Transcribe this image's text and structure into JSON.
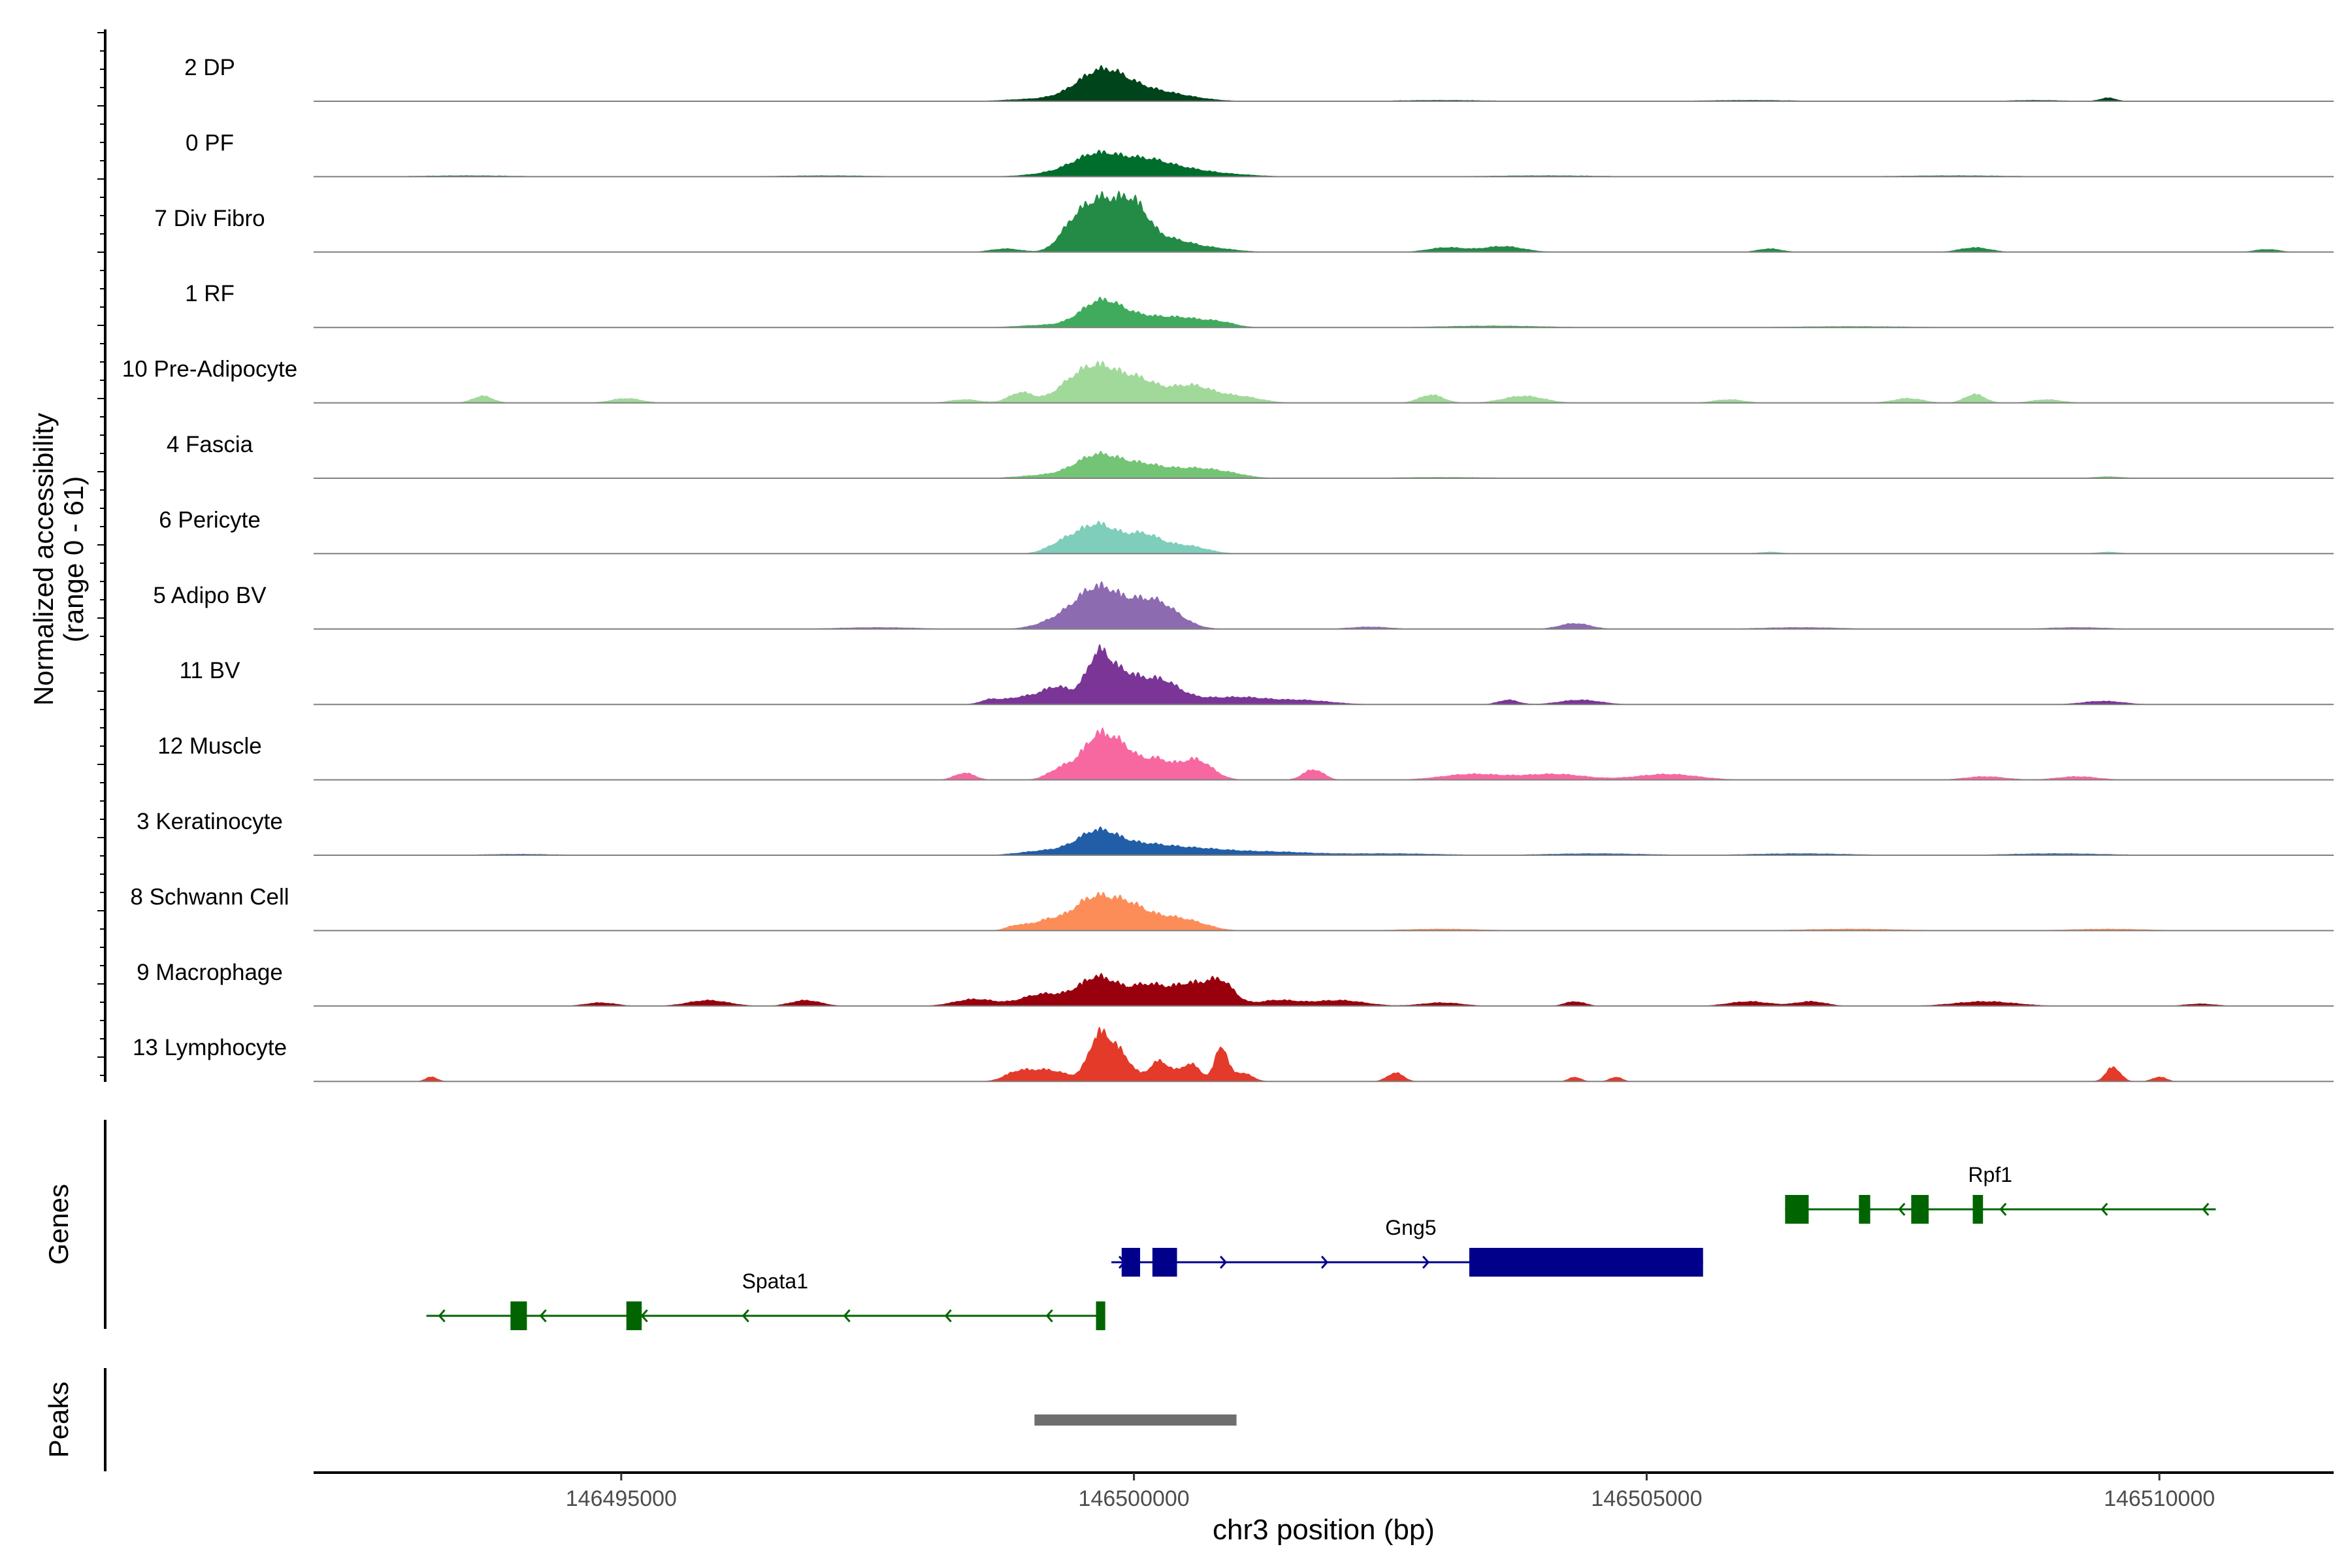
{
  "chart_data": {
    "type": "area",
    "title": "",
    "chromosome": "chr3",
    "xlabel": "chr3 position (bp)",
    "ylabel": "Normalized accessibility",
    "ylabel_range": "(range 0 - 61)",
    "xlim": [
      146492000,
      146511700
    ],
    "ylim": [
      0,
      61
    ],
    "x_ticks": [
      146495000,
      146500000,
      146505000,
      146510000
    ],
    "x_tick_labels": [
      "146495000",
      "146500000",
      "146505000",
      "146510000"
    ],
    "tracks": [
      {
        "name": "2 DP",
        "color": "#00441b",
        "peaks": [
          [
            146499680,
            48,
            240
          ],
          [
            146500150,
            18,
            350
          ],
          [
            146499050,
            4,
            300
          ],
          [
            146509500,
            6,
            80
          ],
          [
            146508800,
            2,
            300
          ],
          [
            146503000,
            2,
            500
          ],
          [
            146506000,
            2,
            500
          ]
        ]
      },
      {
        "name": "0 PF",
        "color": "#006d2c",
        "peaks": [
          [
            146499660,
            40,
            250
          ],
          [
            146500130,
            20,
            200
          ],
          [
            146500450,
            12,
            250
          ],
          [
            146499150,
            4,
            250
          ],
          [
            146500900,
            4,
            300
          ],
          [
            146493500,
            2,
            500
          ],
          [
            146497000,
            2,
            500
          ],
          [
            146504000,
            2,
            600
          ],
          [
            146508000,
            2,
            600
          ]
        ]
      },
      {
        "name": "7 Div Fibro",
        "color": "#238b45",
        "peaks": [
          [
            146499660,
            85,
            180
          ],
          [
            146500000,
            75,
            150
          ],
          [
            146499380,
            30,
            130
          ],
          [
            146500350,
            18,
            180
          ],
          [
            146500700,
            8,
            250
          ],
          [
            146498750,
            6,
            150
          ],
          [
            146503050,
            8,
            180
          ],
          [
            146503600,
            10,
            200
          ],
          [
            146506200,
            6,
            120
          ],
          [
            146508200,
            8,
            150
          ],
          [
            146511050,
            5,
            120
          ]
        ]
      },
      {
        "name": "1 RF",
        "color": "#41ab5d",
        "peaks": [
          [
            146499680,
            45,
            200
          ],
          [
            146500100,
            16,
            220
          ],
          [
            146500500,
            14,
            200
          ],
          [
            146500850,
            8,
            150
          ],
          [
            146499100,
            4,
            250
          ],
          [
            146503500,
            3,
            500
          ],
          [
            146507000,
            2,
            600
          ]
        ]
      },
      {
        "name": "10 Pre-Adipocyte",
        "color": "#a1d99b",
        "peaks": [
          [
            146499650,
            60,
            200
          ],
          [
            146500050,
            35,
            180
          ],
          [
            146499350,
            20,
            160
          ],
          [
            146500550,
            30,
            220
          ],
          [
            146501050,
            10,
            200
          ],
          [
            146498900,
            18,
            120
          ],
          [
            146493650,
            12,
            100
          ],
          [
            146495050,
            8,
            150
          ],
          [
            146498350,
            6,
            150
          ],
          [
            146502900,
            14,
            120
          ],
          [
            146503800,
            12,
            200
          ],
          [
            146505800,
            6,
            150
          ],
          [
            146507550,
            8,
            150
          ],
          [
            146508200,
            15,
            100
          ],
          [
            146508900,
            6,
            150
          ]
        ]
      },
      {
        "name": "4 Fascia",
        "color": "#74c476",
        "peaks": [
          [
            146499650,
            40,
            220
          ],
          [
            146500100,
            20,
            200
          ],
          [
            146500550,
            15,
            220
          ],
          [
            146500900,
            8,
            200
          ],
          [
            146499100,
            5,
            250
          ],
          [
            146509500,
            3,
            150
          ],
          [
            146503000,
            2,
            500
          ]
        ]
      },
      {
        "name": "6 Pericyte",
        "color": "#7fcdbb",
        "peaks": [
          [
            146499650,
            50,
            200
          ],
          [
            146500100,
            30,
            160
          ],
          [
            146500500,
            14,
            200
          ],
          [
            146499300,
            15,
            150
          ],
          [
            146506200,
            3,
            120
          ],
          [
            146509500,
            3,
            120
          ]
        ]
      },
      {
        "name": "5 Adipo BV",
        "color": "#8c6bb1",
        "peaks": [
          [
            146499650,
            70,
            220
          ],
          [
            146500100,
            30,
            200
          ],
          [
            146500300,
            25,
            200
          ],
          [
            146499250,
            12,
            200
          ],
          [
            146504300,
            10,
            150
          ],
          [
            146502300,
            4,
            200
          ],
          [
            146497500,
            3,
            400
          ],
          [
            146506500,
            3,
            400
          ],
          [
            146509200,
            3,
            300
          ]
        ]
      },
      {
        "name": "11 BV",
        "color": "#7a3597",
        "peaks": [
          [
            146499650,
            80,
            120
          ],
          [
            146499900,
            45,
            150
          ],
          [
            146500250,
            40,
            180
          ],
          [
            146499250,
            30,
            150
          ],
          [
            146498900,
            12,
            150
          ],
          [
            146498600,
            8,
            100
          ],
          [
            146500700,
            10,
            250
          ],
          [
            146501100,
            8,
            200
          ],
          [
            146501600,
            8,
            300
          ],
          [
            146503650,
            8,
            100
          ],
          [
            146504350,
            8,
            200
          ],
          [
            146509450,
            6,
            200
          ]
        ]
      },
      {
        "name": "12 Muscle",
        "color": "#f768a1",
        "peaks": [
          [
            146499650,
            75,
            150
          ],
          [
            146499900,
            40,
            120
          ],
          [
            146500200,
            35,
            150
          ],
          [
            146500600,
            35,
            160
          ],
          [
            146499300,
            20,
            130
          ],
          [
            146498350,
            12,
            100
          ],
          [
            146501750,
            18,
            100
          ],
          [
            146503300,
            10,
            300
          ],
          [
            146504100,
            10,
            300
          ],
          [
            146505200,
            10,
            300
          ],
          [
            146508300,
            6,
            200
          ],
          [
            146509200,
            6,
            200
          ]
        ]
      },
      {
        "name": "3 Keratinocyte",
        "color": "#225ea8",
        "peaks": [
          [
            146499650,
            40,
            200
          ],
          [
            146500100,
            16,
            250
          ],
          [
            146500600,
            10,
            300
          ],
          [
            146501300,
            6,
            400
          ],
          [
            146499150,
            8,
            250
          ],
          [
            146502500,
            3,
            500
          ],
          [
            146504500,
            3,
            500
          ],
          [
            146506500,
            3,
            500
          ],
          [
            146509000,
            3,
            500
          ],
          [
            146494000,
            2,
            400
          ]
        ]
      },
      {
        "name": "8 Schwann Cell",
        "color": "#fc8d59",
        "peaks": [
          [
            146499600,
            55,
            200
          ],
          [
            146499950,
            35,
            170
          ],
          [
            146500300,
            20,
            200
          ],
          [
            146500600,
            10,
            180
          ],
          [
            146499150,
            16,
            150
          ],
          [
            146498850,
            8,
            100
          ],
          [
            146503000,
            3,
            400
          ],
          [
            146507000,
            3,
            500
          ],
          [
            146509500,
            3,
            400
          ]
        ]
      },
      {
        "name": "9 Macrophage",
        "color": "#99000d",
        "peaks": [
          [
            146499650,
            50,
            200
          ],
          [
            146500150,
            35,
            180
          ],
          [
            146500550,
            35,
            160
          ],
          [
            146500850,
            40,
            130
          ],
          [
            146499100,
            20,
            200
          ],
          [
            146498450,
            12,
            200
          ],
          [
            146496800,
            10,
            150
          ],
          [
            146495850,
            10,
            200
          ],
          [
            146494800,
            6,
            150
          ],
          [
            146501400,
            10,
            200
          ],
          [
            146502000,
            10,
            250
          ],
          [
            146503000,
            6,
            200
          ],
          [
            146504300,
            8,
            100
          ],
          [
            146506000,
            8,
            200
          ],
          [
            146506600,
            8,
            150
          ],
          [
            146508300,
            8,
            300
          ],
          [
            146510400,
            4,
            150
          ]
        ]
      },
      {
        "name": "13 Lymphocyte",
        "color": "#e33a2a",
        "peaks": [
          [
            146499650,
            70,
            100
          ],
          [
            146499850,
            50,
            120
          ],
          [
            146500250,
            35,
            100
          ],
          [
            146500850,
            60,
            60
          ],
          [
            146500550,
            30,
            100
          ],
          [
            146499150,
            20,
            200
          ],
          [
            146498850,
            12,
            120
          ],
          [
            146501050,
            15,
            100
          ],
          [
            146493150,
            8,
            60
          ],
          [
            146502550,
            15,
            80
          ],
          [
            146504300,
            8,
            60
          ],
          [
            146504700,
            8,
            60
          ],
          [
            146509550,
            25,
            70
          ],
          [
            146510000,
            8,
            70
          ]
        ]
      }
    ],
    "genes": [
      {
        "name": "Spata1",
        "strand": "-",
        "start": 146493100,
        "end": 146499700,
        "color": "#006400",
        "exons": [
          [
            146493920,
            146494080
          ],
          [
            146495050,
            146495200
          ],
          [
            146499630,
            146499720
          ]
        ],
        "label_x": 146496500,
        "row": 2
      },
      {
        "name": "Gng5",
        "strand": "+",
        "start": 146499780,
        "end": 146505550,
        "color": "#00008b",
        "exons": [
          [
            146499880,
            146500060
          ],
          [
            146500180,
            146500420
          ],
          [
            146503270,
            146505550
          ]
        ],
        "label_x": 146502700,
        "row": 1
      },
      {
        "name": "Rpf1",
        "strand": "-",
        "start": 146506350,
        "end": 146510550,
        "color": "#006400",
        "exons": [
          [
            146506350,
            146506580
          ],
          [
            146507070,
            146507180
          ],
          [
            146507580,
            146507750
          ],
          [
            146508180,
            146508280
          ]
        ],
        "label_x": 146508350,
        "row": 0
      }
    ],
    "peaks_track": [
      [
        146499030,
        146501000
      ]
    ],
    "peaks_color": "#6e6e6e",
    "gene_track_label": "Genes",
    "peak_track_label": "Peaks"
  }
}
